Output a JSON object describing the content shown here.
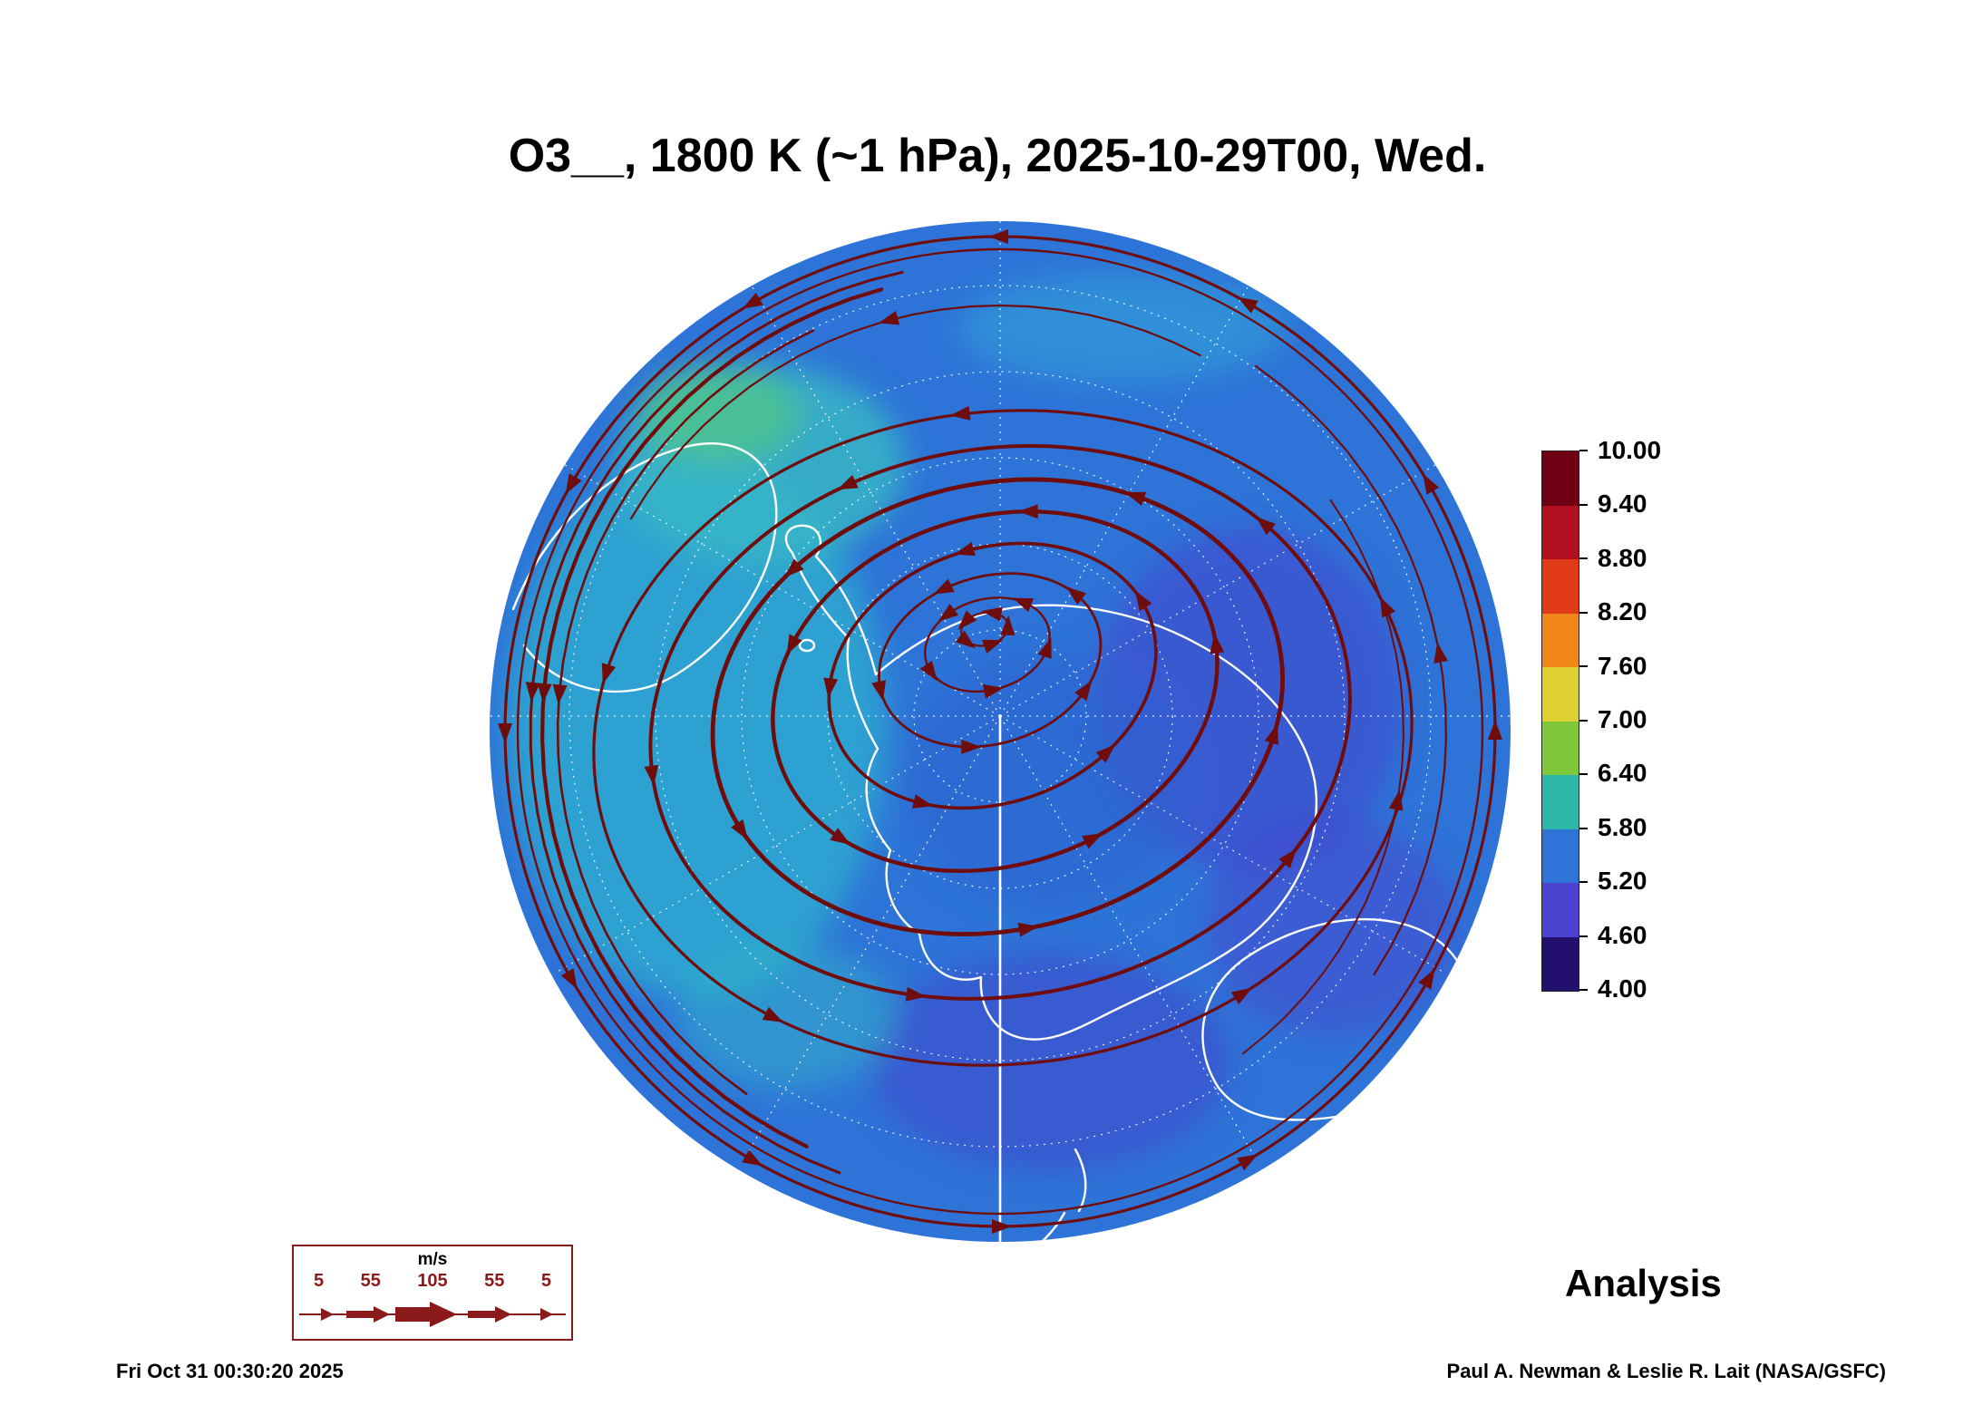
{
  "title": "O3__, 1800 K (~1 hPa), 2025-10-29T00, Wed.",
  "colorbar": {
    "ticks": [
      "10.00",
      "9.40",
      "8.80",
      "8.20",
      "7.60",
      "7.00",
      "6.40",
      "5.80",
      "5.20",
      "4.60",
      "4.00"
    ],
    "segment_colors_top_to_bottom": [
      "#700014",
      "#b01020",
      "#e03a18",
      "#f08518",
      "#ddd030",
      "#7fc83c",
      "#2eb8a8",
      "#2e74d8",
      "#4b43cf",
      "#23106e"
    ]
  },
  "wind_legend": {
    "units": "m/s",
    "speeds": [
      "5",
      "55",
      "105",
      "55",
      "5"
    ],
    "color": "#8b1a1a"
  },
  "footer": {
    "analysis_label": "Analysis",
    "timestamp": "Fri Oct 31 00:30:20 2025",
    "credit": "Paul A. Newman & Leslie R. Lait (NASA/GSFC)"
  },
  "map": {
    "base_color": "#2e74d8",
    "teal_patch_color": "#2fb0cf",
    "green_patch_color": "#4cc391",
    "dark_patch_color": "#4245cc",
    "coastline_color": "#ffffff",
    "graticule_color": "#ffffff",
    "streamline_color": "#6f0d0d"
  },
  "chart_data": {
    "type": "heatmap",
    "title": "O3__, 1800 K (~1 hPa), 2025-10-29T00, Wed.",
    "variable": "O3",
    "level": "1800 K (~1 hPa)",
    "valid_time": "2025-10-29T00, Wed.",
    "projection": "south polar stereographic, Antarctica centered",
    "colorbar_ticks": [
      10.0,
      9.4,
      8.8,
      8.2,
      7.6,
      7.0,
      6.4,
      5.8,
      5.2,
      4.6,
      4.0
    ],
    "colorbar_range": [
      4.0,
      10.0
    ],
    "overlay": "wind streamlines with arrowheads (circumpolar vortex around pole)",
    "wind_scale_m_per_s": [
      5,
      55,
      105,
      55,
      5
    ],
    "run_label": "Analysis",
    "generated": "Fri Oct 31 00:30:20 2025",
    "credit": "Paul A. Newman & Leslie R. Lait (NASA/GSFC)",
    "legend_position": "right",
    "field_summary": "Ozone field mostly 4.6-6.4 (blue to cyan); teal/green maxima ~5.8-6.8 west of the Antarctic Peninsula; darker blue-violet minima ~4.6-5.2 in eastern-hemisphere ocean sectors"
  }
}
